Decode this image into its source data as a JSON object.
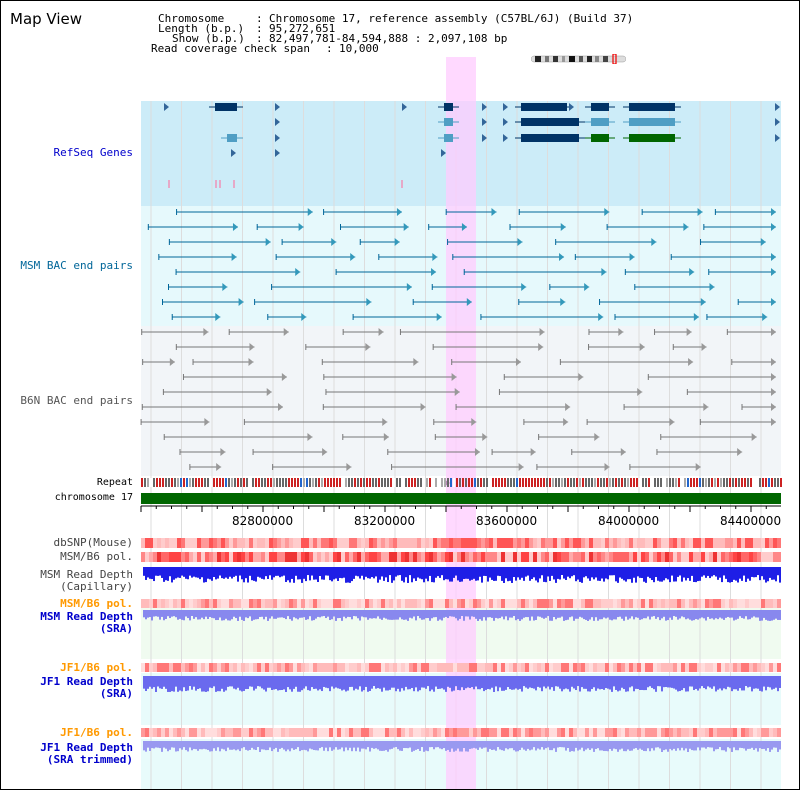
{
  "page_title": "Map View",
  "info": {
    "chromosome_label": "Chromosome",
    "chromosome_value": "Chromosome 17, reference assembly (C57BL/6J) (Build 37)",
    "length_label": "Length (b.p.)",
    "length_value": "95,272,651",
    "show_label": "Show (b.p.)",
    "show_value": "82,497,781-84,594,888 : 2,097,108 bp",
    "coverage_label": "Read coverage check span",
    "coverage_value": "10,000"
  },
  "tracks": {
    "refseq": "RefSeq Genes",
    "msm_bac": "MSM BAC end pairs",
    "b6n_bac": "B6N BAC end pairs",
    "repeat": "Repeat",
    "chromosome": "chromosome 17",
    "dbsnp": "dbSNP(Mouse)",
    "msm_b6_pol_1": "MSM/B6 pol.",
    "msm_read_depth_cap_1": "MSM Read Depth",
    "msm_read_depth_cap_2": "(Capillary)",
    "msm_b6_pol_2": "MSM/B6 pol.",
    "msm_read_depth_sra_1": "MSM Read Depth",
    "msm_read_depth_sra_2": "(SRA)",
    "jf1_b6_pol_1": "JF1/B6 pol.",
    "jf1_read_depth_sra_1": "JF1 Read Depth",
    "jf1_read_depth_sra_2": "(SRA)",
    "jf1_b6_pol_2": "JF1/B6 pol.",
    "jf1_read_depth_trim_1": "JF1 Read Depth",
    "jf1_read_depth_trim_2": "(SRA trimmed)"
  },
  "axis": {
    "ticks": [
      "82800000",
      "83200000",
      "83600000",
      "84000000",
      "84400000"
    ]
  },
  "colors": {
    "refseq_label": "#0000cc",
    "msm_label": "#006699",
    "b6n_label": "#555555",
    "orange_label": "#ff9900",
    "blue_label": "#0000cc",
    "highlight": "#ffccff",
    "refseq_bg": "#ccecf8",
    "msm_bg": "#e6f9fc",
    "b6n_bg": "#f2f5f8",
    "chromosome_bar": "#006600"
  }
}
